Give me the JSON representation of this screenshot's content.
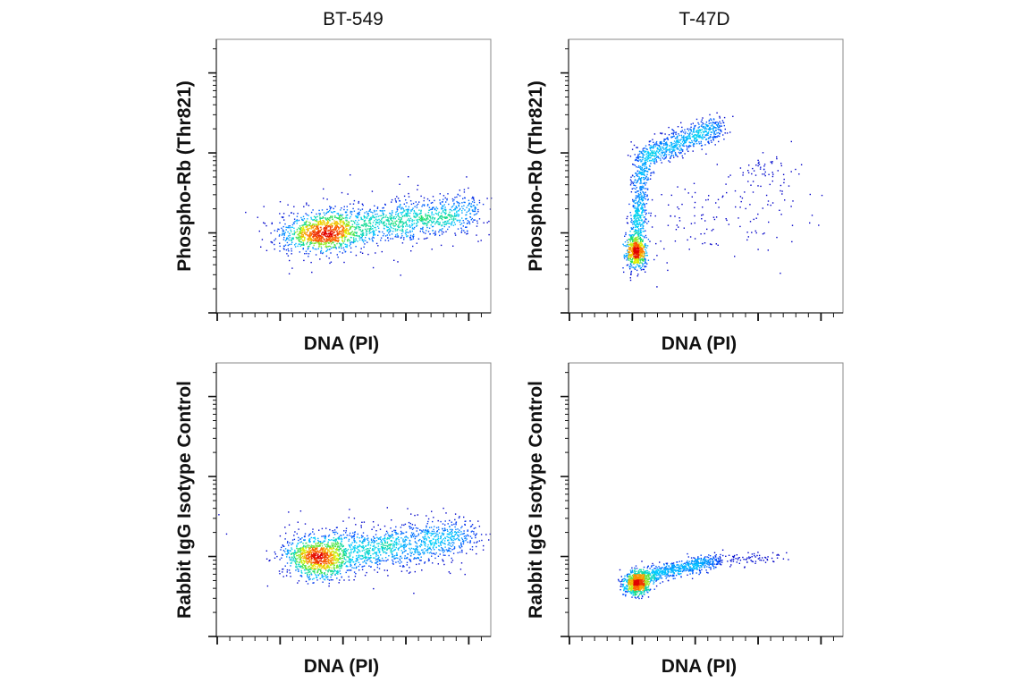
{
  "column_titles": [
    "BT-549",
    "T-47D"
  ],
  "chart_data": [
    {
      "type": "scatter",
      "subtype": "density-dot-plot",
      "title": "BT-549",
      "xlabel": "DNA (PI)",
      "ylabel": "Phospho-Rb (Thr821)",
      "x_scale": "linear",
      "y_scale": "log",
      "xlim": [
        0,
        4.35
      ],
      "ylim": [
        0,
        3.42
      ],
      "x_major_ticks": [
        0,
        1,
        2,
        3,
        4
      ],
      "y_major_ticks": [
        0,
        1,
        2,
        3
      ],
      "tick_labels_shown": false,
      "populations": [
        {
          "from": [
            1.6,
            1.0
          ],
          "to": [
            1.6,
            1.0
          ],
          "sd": [
            0.3,
            0.12
          ],
          "n": 900
        },
        {
          "from": [
            1.7,
            1.05
          ],
          "to": [
            4.1,
            1.27
          ],
          "sd": [
            0.15,
            0.12
          ],
          "n": 1100
        },
        {
          "from": [
            2.5,
            1.15
          ],
          "to": [
            2.5,
            1.15
          ],
          "sd": [
            1.0,
            0.25
          ],
          "n": 150
        }
      ]
    },
    {
      "type": "scatter",
      "subtype": "density-dot-plot",
      "title": "T-47D",
      "xlabel": "DNA (PI)",
      "ylabel": "Phospho-Rb (Thr821)",
      "x_scale": "linear",
      "y_scale": "log",
      "xlim": [
        0,
        4.35
      ],
      "ylim": [
        0,
        3.42
      ],
      "x_major_ticks": [
        0,
        1,
        2,
        3,
        4
      ],
      "y_major_ticks": [
        0,
        1,
        2,
        3
      ],
      "tick_labels_shown": false,
      "populations": [
        {
          "from": [
            1.05,
            0.75
          ],
          "to": [
            1.05,
            0.75
          ],
          "sd": [
            0.08,
            0.1
          ],
          "n": 500
        },
        {
          "from": [
            1.05,
            0.8
          ],
          "to": [
            1.15,
            1.95
          ],
          "sd": [
            0.07,
            0.08
          ],
          "n": 600
        },
        {
          "from": [
            1.15,
            1.95
          ],
          "to": [
            2.4,
            2.35
          ],
          "sd": [
            0.1,
            0.08
          ],
          "n": 700
        },
        {
          "from": [
            1.5,
            1.0
          ],
          "to": [
            3.4,
            1.5
          ],
          "sd": [
            0.4,
            0.3
          ],
          "n": 150
        },
        {
          "from": [
            3.05,
            1.8
          ],
          "to": [
            3.05,
            1.8
          ],
          "sd": [
            0.2,
            0.08
          ],
          "n": 40
        }
      ]
    },
    {
      "type": "scatter",
      "subtype": "density-dot-plot",
      "xlabel": "DNA (PI)",
      "ylabel": "Rabbit IgG Isotype Control",
      "x_scale": "linear",
      "y_scale": "log",
      "xlim": [
        0,
        4.35
      ],
      "ylim": [
        0,
        3.42
      ],
      "x_major_ticks": [
        0,
        1,
        2,
        3,
        4
      ],
      "y_major_ticks": [
        0,
        1,
        2,
        3
      ],
      "tick_labels_shown": false,
      "populations": [
        {
          "from": [
            1.6,
            1.0
          ],
          "to": [
            1.6,
            1.0
          ],
          "sd": [
            0.28,
            0.13
          ],
          "n": 1000
        },
        {
          "from": [
            1.7,
            1.05
          ],
          "to": [
            4.0,
            1.25
          ],
          "sd": [
            0.15,
            0.13
          ],
          "n": 1100
        },
        {
          "from": [
            2.5,
            1.15
          ],
          "to": [
            2.5,
            1.15
          ],
          "sd": [
            1.0,
            0.25
          ],
          "n": 120
        }
      ]
    },
    {
      "type": "scatter",
      "subtype": "density-dot-plot",
      "xlabel": "DNA (PI)",
      "ylabel": "Rabbit IgG Isotype Control",
      "x_scale": "linear",
      "y_scale": "log",
      "xlim": [
        0,
        4.35
      ],
      "ylim": [
        0,
        3.42
      ],
      "x_major_ticks": [
        0,
        1,
        2,
        3,
        4
      ],
      "y_major_ticks": [
        0,
        1,
        2,
        3
      ],
      "tick_labels_shown": false,
      "populations": [
        {
          "from": [
            1.05,
            0.67
          ],
          "to": [
            1.05,
            0.67
          ],
          "sd": [
            0.1,
            0.07
          ],
          "n": 700
        },
        {
          "from": [
            1.1,
            0.75
          ],
          "to": [
            2.3,
            0.95
          ],
          "sd": [
            0.1,
            0.05
          ],
          "n": 700
        },
        {
          "from": [
            2.3,
            0.95
          ],
          "to": [
            3.3,
            1.0
          ],
          "sd": [
            0.15,
            0.04
          ],
          "n": 80
        }
      ]
    }
  ],
  "colormap": [
    "#0000c8",
    "#0050ff",
    "#00d0ff",
    "#20e060",
    "#e8f000",
    "#ff7000",
    "#e00000"
  ]
}
